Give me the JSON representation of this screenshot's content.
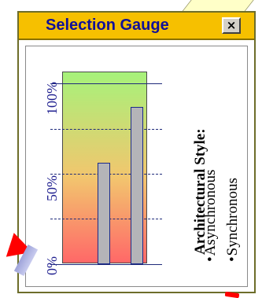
{
  "window": {
    "title": "Selection Gauge",
    "close_label": "×"
  },
  "gauge": {
    "ticks": [
      "0%",
      "50%",
      "100%"
    ],
    "gridlines": [
      25,
      50,
      75
    ],
    "bars": [
      {
        "label": "Asynchronous",
        "value": 56
      },
      {
        "label": "Synchronous",
        "value": 87
      }
    ],
    "colors": {
      "top": "#a6f27a",
      "middle": "#f2c66e",
      "bottom": "#ff6868",
      "bar_fill": "#b4b4b8",
      "bar_stroke": "#1a2a8a"
    }
  },
  "legend": {
    "title": "Architectural Style:",
    "bullet": "•",
    "items": [
      "Asynchronous",
      "Synchronous"
    ]
  }
}
